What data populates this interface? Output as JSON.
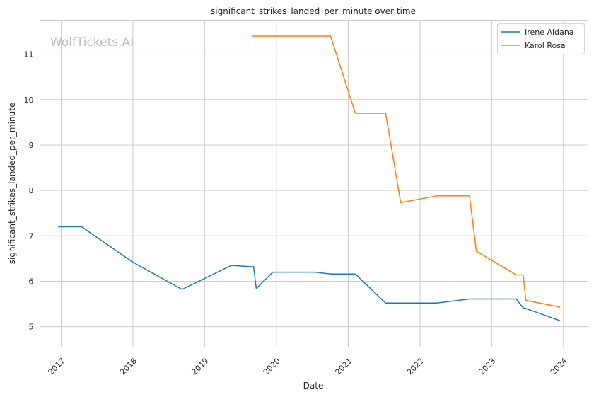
{
  "chart_data": {
    "type": "line",
    "title": "significant_strikes_landed_per_minute over time",
    "xlabel": "Date",
    "ylabel": "significant_strikes_landed_per_minute",
    "watermark": "WolfTickets.AI",
    "xlim": [
      "2016-09-15",
      "2024-05-05"
    ],
    "ylim": [
      4.55,
      11.75
    ],
    "x_ticks": [
      "2017-01-01",
      "2018-01-01",
      "2019-01-01",
      "2020-01-01",
      "2021-01-01",
      "2022-01-01",
      "2023-01-01",
      "2024-01-01"
    ],
    "x_tick_labels": [
      "2017",
      "2018",
      "2019",
      "2020",
      "2021",
      "2022",
      "2023",
      "2024"
    ],
    "y_ticks": [
      5,
      6,
      7,
      8,
      9,
      10,
      11
    ],
    "y_tick_labels": [
      "5",
      "6",
      "7",
      "8",
      "9",
      "10",
      "11"
    ],
    "grid": true,
    "legend_position": "top-right",
    "series": [
      {
        "name": "Irene Aldana",
        "color": "#1f77b4",
        "points": [
          [
            "2016-12-17",
            7.2
          ],
          [
            "2017-04-15",
            7.2
          ],
          [
            "2018-01-01",
            6.42
          ],
          [
            "2018-09-08",
            5.82
          ],
          [
            "2019-05-18",
            6.35
          ],
          [
            "2019-08-17",
            6.32
          ],
          [
            "2019-09-07",
            6.32
          ],
          [
            "2019-09-21",
            5.84
          ],
          [
            "2019-12-14",
            6.2
          ],
          [
            "2020-07-15",
            6.2
          ],
          [
            "2020-10-03",
            6.16
          ],
          [
            "2021-02-06",
            6.16
          ],
          [
            "2021-07-10",
            5.52
          ],
          [
            "2022-03-26",
            5.52
          ],
          [
            "2022-09-10",
            5.61
          ],
          [
            "2023-05-06",
            5.61
          ],
          [
            "2023-06-10",
            5.41
          ],
          [
            "2023-06-24",
            5.4
          ],
          [
            "2023-12-16",
            5.13
          ]
        ]
      },
      {
        "name": "Karol Rosa",
        "color": "#ff7f0e",
        "points": [
          [
            "2019-08-31",
            11.4
          ],
          [
            "2020-10-03",
            11.4
          ],
          [
            "2021-02-06",
            9.7
          ],
          [
            "2021-07-10",
            9.7
          ],
          [
            "2021-09-25",
            7.73
          ],
          [
            "2022-03-26",
            7.88
          ],
          [
            "2022-09-10",
            7.88
          ],
          [
            "2022-10-15",
            6.66
          ],
          [
            "2023-05-06",
            6.14
          ],
          [
            "2023-06-10",
            6.14
          ],
          [
            "2023-06-24",
            5.58
          ],
          [
            "2023-12-16",
            5.43
          ]
        ]
      }
    ]
  }
}
